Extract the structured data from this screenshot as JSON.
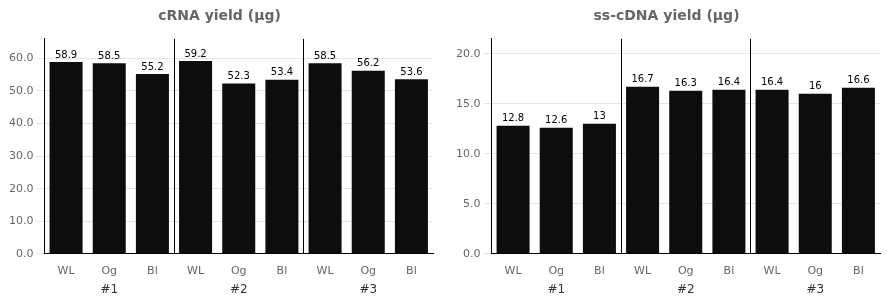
{
  "chart_data": [
    {
      "type": "bar",
      "title": "cRNA yield (μg)",
      "groups": [
        "#1",
        "#2",
        "#3"
      ],
      "categories": [
        "WL",
        "Og",
        "Bl"
      ],
      "values": [
        [
          58.9,
          58.5,
          55.2
        ],
        [
          59.2,
          52.3,
          53.4
        ],
        [
          58.5,
          56.2,
          53.6
        ]
      ],
      "color": "#0d0d0d",
      "ylim": [
        0,
        66
      ],
      "yticks": [
        {
          "value": 0,
          "label": "0.0"
        },
        {
          "value": 10,
          "label": "10.0"
        },
        {
          "value": 20,
          "label": "20.0"
        },
        {
          "value": 30,
          "label": "30.0"
        },
        {
          "value": 40,
          "label": "40.0"
        },
        {
          "value": 50,
          "label": "50.0"
        },
        {
          "value": 60,
          "label": "60.0"
        }
      ],
      "grid": true,
      "data_labels": true
    },
    {
      "type": "bar",
      "title": "ss-cDNA yield (μg)",
      "groups": [
        "#1",
        "#2",
        "#3"
      ],
      "categories": [
        "WL",
        "Og",
        "Bl"
      ],
      "values": [
        [
          12.8,
          12.6,
          13.0
        ],
        [
          16.7,
          16.3,
          16.4
        ],
        [
          16.4,
          16.0,
          16.6
        ]
      ],
      "color": "#0d0d0d",
      "ylim": [
        0,
        21.5
      ],
      "yticks": [
        {
          "value": 0,
          "label": "0.0"
        },
        {
          "value": 5,
          "label": "5.0"
        },
        {
          "value": 10,
          "label": "10.0"
        },
        {
          "value": 15,
          "label": "15.0"
        },
        {
          "value": 20,
          "label": "20.0"
        }
      ],
      "grid": true,
      "data_labels": true
    }
  ]
}
